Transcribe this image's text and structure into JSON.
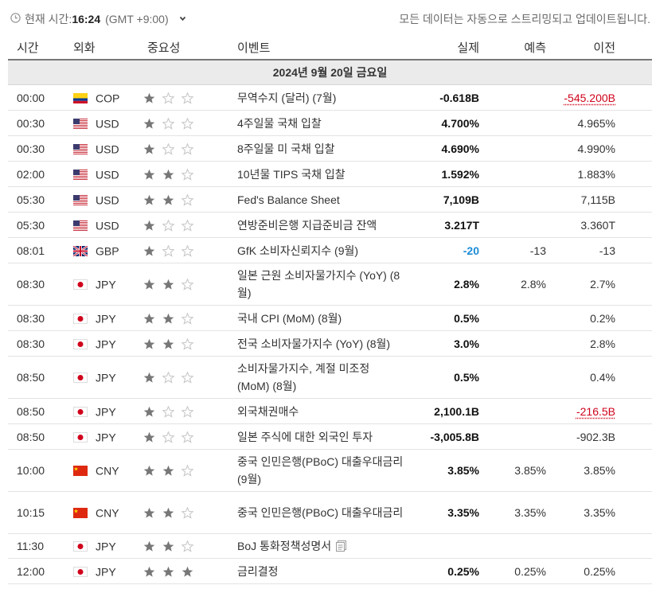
{
  "header": {
    "current_time_label": "현재 시간:",
    "current_time": "16:24",
    "timezone": "(GMT +9:00)",
    "streaming_note": "모든 데이터는 자동으로 스트리밍되고 업데이트됩니다."
  },
  "columns": {
    "time": "시간",
    "currency": "외화",
    "importance": "중요성",
    "event": "이벤트",
    "actual": "실제",
    "forecast": "예측",
    "previous": "이전"
  },
  "date_label": "2024년 9월 20일 금요일",
  "colors": {
    "star_filled": "#777777",
    "star_empty": "#c8c8c8",
    "actual_better": "#1b8bd6",
    "revised_worse": "#d0021b"
  },
  "rows": [
    {
      "time": "00:00",
      "flag": "CO",
      "currency": "COP",
      "stars": 1,
      "event": "무역수지 (달러) (7월)",
      "actual": "-0.618B",
      "forecast": "",
      "previous": "-545.200B",
      "prev_red": true
    },
    {
      "time": "00:30",
      "flag": "US",
      "currency": "USD",
      "stars": 1,
      "event": "4주일물 국채 입찰",
      "actual": "4.700%",
      "forecast": "",
      "previous": "4.965%"
    },
    {
      "time": "00:30",
      "flag": "US",
      "currency": "USD",
      "stars": 1,
      "event": "8주일물 미 국채 입찰",
      "actual": "4.690%",
      "forecast": "",
      "previous": "4.990%"
    },
    {
      "time": "02:00",
      "flag": "US",
      "currency": "USD",
      "stars": 2,
      "event": "10년물 TIPS 국채 입찰",
      "actual": "1.592%",
      "forecast": "",
      "previous": "1.883%"
    },
    {
      "time": "05:30",
      "flag": "US",
      "currency": "USD",
      "stars": 2,
      "event": "Fed's Balance Sheet",
      "actual": "7,109B",
      "forecast": "",
      "previous": "7,115B"
    },
    {
      "time": "05:30",
      "flag": "US",
      "currency": "USD",
      "stars": 1,
      "event": "연방준비은행 지급준비금 잔액",
      "actual": "3.217T",
      "forecast": "",
      "previous": "3.360T"
    },
    {
      "time": "08:01",
      "flag": "GB",
      "currency": "GBP",
      "stars": 1,
      "event": "GfK 소비자신뢰지수 (9월)",
      "actual": "-20",
      "actual_blue": true,
      "forecast": "-13",
      "previous": "-13"
    },
    {
      "time": "08:30",
      "flag": "JP",
      "currency": "JPY",
      "stars": 2,
      "event": "일본 근원 소비자물가지수 (YoY) (8월)",
      "actual": "2.8%",
      "forecast": "2.8%",
      "previous": "2.7%",
      "tall": true
    },
    {
      "time": "08:30",
      "flag": "JP",
      "currency": "JPY",
      "stars": 2,
      "event": "국내 CPI (MoM) (8월)",
      "actual": "0.5%",
      "forecast": "",
      "previous": "0.2%"
    },
    {
      "time": "08:30",
      "flag": "JP",
      "currency": "JPY",
      "stars": 2,
      "event": "전국 소비자물가지수 (YoY) (8월)",
      "actual": "3.0%",
      "forecast": "",
      "previous": "2.8%"
    },
    {
      "time": "08:50",
      "flag": "JP",
      "currency": "JPY",
      "stars": 1,
      "event": "소비자물가지수, 계절 미조정 (MoM) (8월)",
      "actual": "0.5%",
      "forecast": "",
      "previous": "0.4%",
      "tall": true
    },
    {
      "time": "08:50",
      "flag": "JP",
      "currency": "JPY",
      "stars": 1,
      "event": "외국채권매수",
      "actual": "2,100.1B",
      "forecast": "",
      "previous": "-216.5B",
      "prev_red": true
    },
    {
      "time": "08:50",
      "flag": "JP",
      "currency": "JPY",
      "stars": 1,
      "event": "일본 주식에 대한 외국인 투자",
      "actual": "-3,005.8B",
      "forecast": "",
      "previous": "-902.3B"
    },
    {
      "time": "10:00",
      "flag": "CN",
      "currency": "CNY",
      "stars": 2,
      "event": "중국 인민은행(PBoC) 대출우대금리 (9월)",
      "actual": "3.85%",
      "forecast": "3.85%",
      "previous": "3.85%",
      "tall": true
    },
    {
      "time": "10:15",
      "flag": "CN",
      "currency": "CNY",
      "stars": 2,
      "event": "중국 인민은행(PBoC) 대출우대금리",
      "actual": "3.35%",
      "forecast": "3.35%",
      "previous": "3.35%",
      "tall": true
    },
    {
      "time": "11:30",
      "flag": "JP",
      "currency": "JPY",
      "stars": 2,
      "event": "BoJ 통화정책성명서",
      "actual": "",
      "forecast": "",
      "previous": "",
      "doc": true
    },
    {
      "time": "12:00",
      "flag": "JP",
      "currency": "JPY",
      "stars": 3,
      "event": "금리결정",
      "actual": "0.25%",
      "forecast": "0.25%",
      "previous": "0.25%"
    }
  ]
}
